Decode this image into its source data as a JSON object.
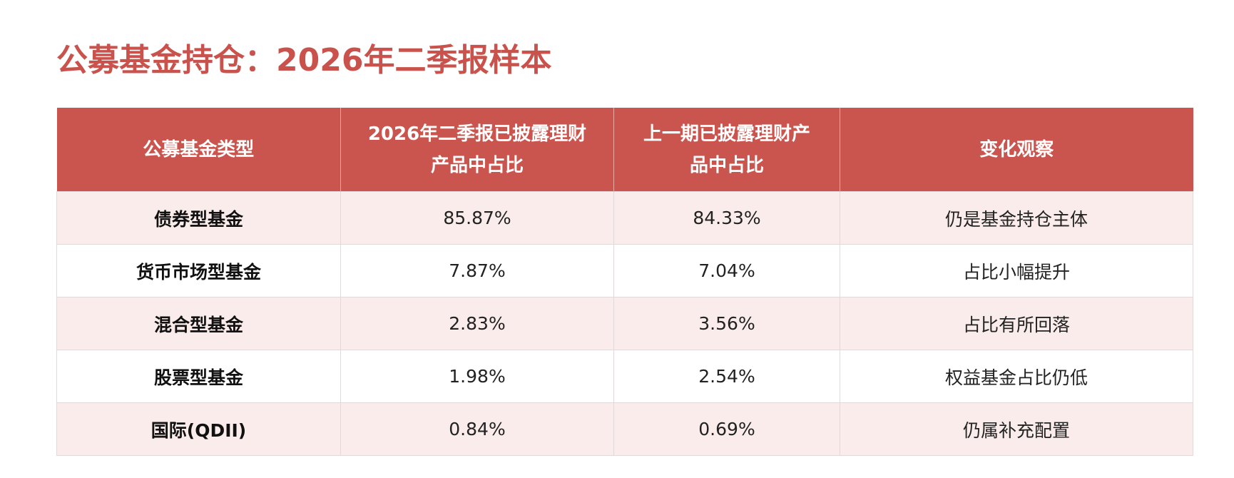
{
  "header": {
    "title": "公募基金持仓：2026年二季报样本"
  },
  "table": {
    "columns": [
      "公募基金类型",
      "2026年二季报已披露理财产品中占比",
      "上一期已披露理财产品中占比",
      "变化观察"
    ],
    "rows": [
      [
        "债券型基金",
        "85.87%",
        "84.33%",
        "仍是基金持仓主体"
      ],
      [
        "货币市场型基金",
        "7.87%",
        "7.04%",
        "占比小幅提升"
      ],
      [
        "混合型基金",
        "2.83%",
        "3.56%",
        "占比有所回落"
      ],
      [
        "股票型基金",
        "1.98%",
        "2.54%",
        "权益基金占比仍低"
      ],
      [
        "国际(QDII)",
        "0.84%",
        "0.69%",
        "仍属补充配置"
      ]
    ]
  }
}
